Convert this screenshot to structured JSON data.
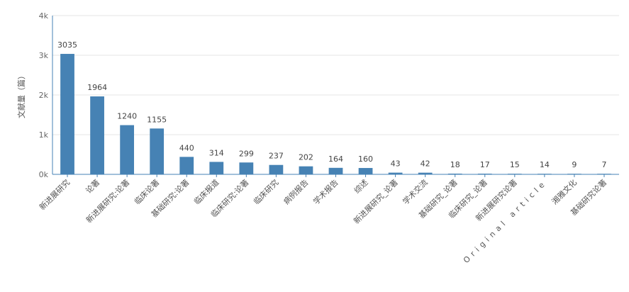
{
  "chart_data": {
    "type": "bar",
    "title": "",
    "xlabel": "",
    "ylabel": "文献量（篇）",
    "ylim": [
      0,
      4000
    ],
    "yticks": [
      {
        "value": 0,
        "label": "0k"
      },
      {
        "value": 1000,
        "label": "1k"
      },
      {
        "value": 2000,
        "label": "2k"
      },
      {
        "value": 3000,
        "label": "3k"
      },
      {
        "value": 4000,
        "label": "4k"
      }
    ],
    "grid": true,
    "bar_color": "#4682b4",
    "categories": [
      "新进展研究",
      "论著",
      "新进展研究:论著",
      "临床论著",
      "基础研究:论著",
      "临床报道",
      "临床研究:论著",
      "临床研究",
      "病例报告",
      "学术报告",
      "综述",
      "新进展研究_论著",
      "学术交流",
      "基础研究_论著",
      "临床研究_论著",
      "新进展研究论著",
      "Original article",
      "湘雅文化",
      "基础研究论著"
    ],
    "values": [
      3035,
      1964,
      1240,
      1155,
      440,
      314,
      299,
      237,
      202,
      164,
      160,
      43,
      42,
      18,
      17,
      15,
      14,
      9,
      7
    ]
  }
}
